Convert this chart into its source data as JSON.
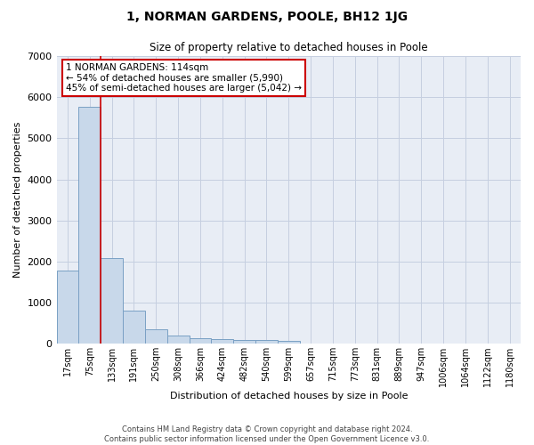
{
  "title": "1, NORMAN GARDENS, POOLE, BH12 1JG",
  "subtitle": "Size of property relative to detached houses in Poole",
  "xlabel": "Distribution of detached houses by size in Poole",
  "ylabel": "Number of detached properties",
  "footer_line1": "Contains HM Land Registry data © Crown copyright and database right 2024.",
  "footer_line2": "Contains public sector information licensed under the Open Government Licence v3.0.",
  "bar_color": "#c8d8ea",
  "bar_edge_color": "#7aa0c4",
  "grid_color": "#c5cfe0",
  "background_color": "#e8edf5",
  "annotation_box_color": "#cc0000",
  "vline_color": "#cc0000",
  "categories": [
    "17sqm",
    "75sqm",
    "133sqm",
    "191sqm",
    "250sqm",
    "308sqm",
    "366sqm",
    "424sqm",
    "482sqm",
    "540sqm",
    "599sqm",
    "657sqm",
    "715sqm",
    "773sqm",
    "831sqm",
    "889sqm",
    "947sqm",
    "1006sqm",
    "1064sqm",
    "1122sqm",
    "1180sqm"
  ],
  "values": [
    1780,
    5770,
    2080,
    800,
    340,
    200,
    130,
    110,
    95,
    80,
    75,
    0,
    0,
    0,
    0,
    0,
    0,
    0,
    0,
    0,
    0
  ],
  "ylim": [
    0,
    7000
  ],
  "yticks": [
    0,
    1000,
    2000,
    3000,
    4000,
    5000,
    6000,
    7000
  ],
  "vline_position": 1.5,
  "annotation_text_line1": "1 NORMAN GARDENS: 114sqm",
  "annotation_text_line2": "← 54% of detached houses are smaller (5,990)",
  "annotation_text_line3": "45% of semi-detached houses are larger (5,042) →"
}
